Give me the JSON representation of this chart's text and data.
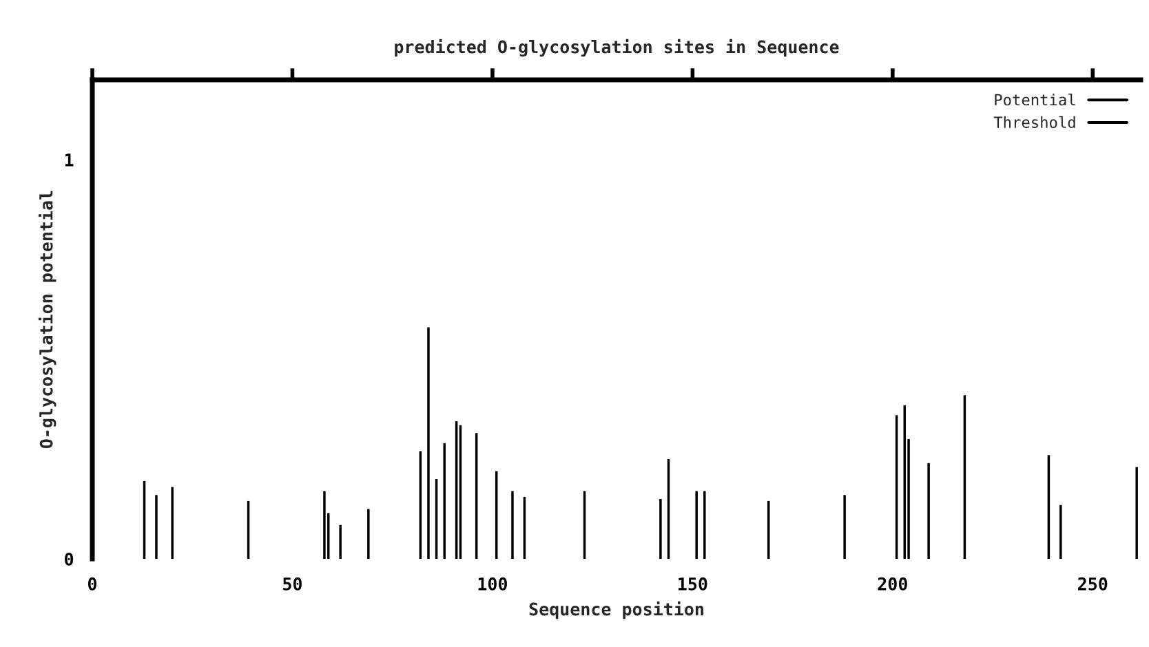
{
  "chart_data": {
    "type": "bar",
    "title": "predicted O-glycosylation sites in Sequence",
    "xlabel": "Sequence position",
    "ylabel": "O-glycosylation potential",
    "series": [
      {
        "name": "Potential",
        "color": "#000000",
        "x": [
          13,
          16,
          20,
          39,
          58,
          59,
          62,
          69,
          82,
          84,
          86,
          88,
          91,
          92,
          96,
          101,
          105,
          108,
          123,
          142,
          144,
          151,
          153,
          169,
          188,
          201,
          203,
          204,
          209,
          218,
          239,
          242,
          261
        ],
        "values": [
          0.195,
          0.16,
          0.18,
          0.145,
          0.17,
          0.115,
          0.085,
          0.125,
          0.27,
          0.58,
          0.2,
          0.29,
          0.345,
          0.335,
          0.315,
          0.22,
          0.17,
          0.155,
          0.17,
          0.15,
          0.25,
          0.17,
          0.17,
          0.145,
          0.16,
          0.36,
          0.385,
          0.3,
          0.24,
          0.41,
          0.26,
          0.135,
          0.23
        ]
      },
      {
        "name": "Threshold",
        "color": "#000000"
      }
    ],
    "xlim": [
      0,
      262
    ],
    "ylim": [
      0,
      1.2
    ],
    "xticks": [
      0,
      50,
      100,
      150,
      200,
      250
    ],
    "yticks": [
      0,
      1
    ],
    "grid": false,
    "legend": "top right"
  }
}
